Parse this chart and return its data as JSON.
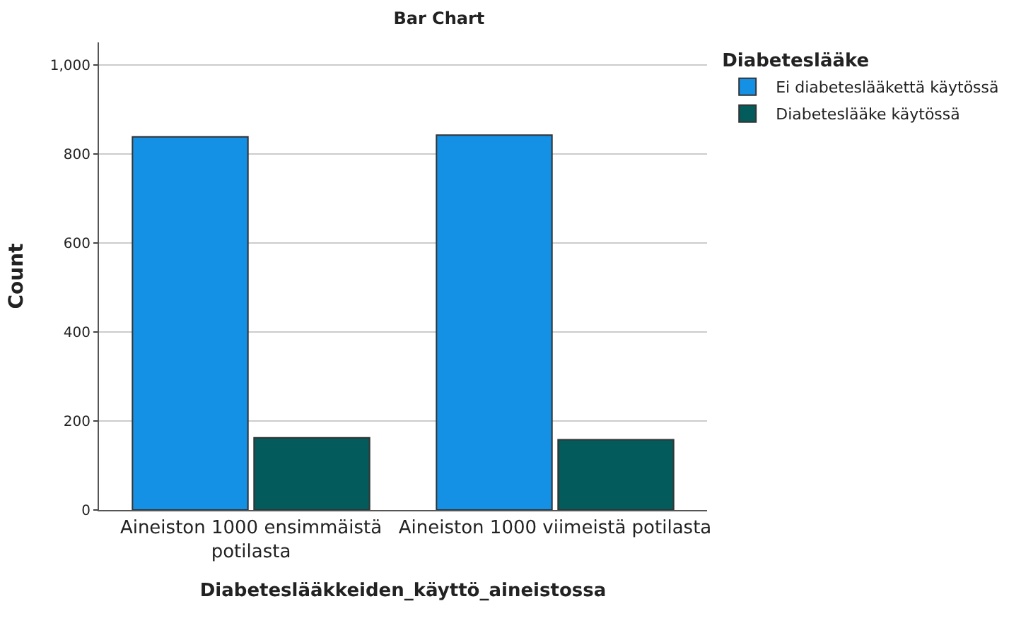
{
  "chart_data": {
    "type": "bar",
    "title": "Bar Chart",
    "xlabel": "Diabeteslääkkeiden_käyttö_aineistossa",
    "ylabel": "Count",
    "legend_title": "Diabeteslääke",
    "categories": [
      "Aineiston 1000 ensimmäistä potilasta",
      "Aineiston 1000 viimeistä potilasta"
    ],
    "series": [
      {
        "name": "Ei diabeteslääkettä käytössä",
        "color": "#1490e4",
        "values": [
          838,
          842
        ]
      },
      {
        "name": "Diabeteslääke käytössä",
        "color": "#035b5b",
        "values": [
          162,
          158
        ]
      }
    ],
    "ylim": [
      0,
      1050
    ],
    "yticks": [
      0,
      200,
      400,
      600,
      800,
      {
        "value": 1000,
        "label": "1,000"
      }
    ],
    "grid": "y",
    "legend": "top right"
  }
}
